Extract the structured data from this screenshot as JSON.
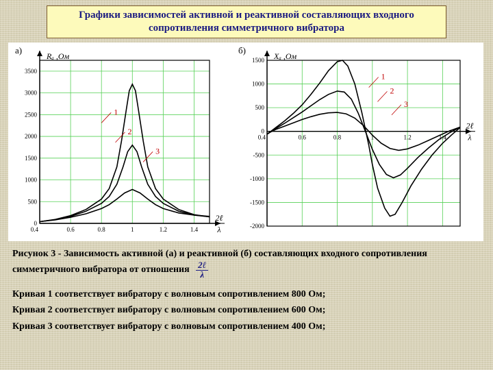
{
  "title": "Графики зависимостей активной и реактивной составляющих входного сопротивления симметричного вибратора",
  "caption_main": "Рисунок 3 - Зависимость активной (а) и реактивной (б) составляющих входного сопротивления симметричного вибратора от отношения",
  "ratio_num": "2ℓ",
  "ratio_den": "λ",
  "legend1": "Кривая 1 соответствует вибратору с волновым сопротивлением 800 Ом;",
  "legend2": "Кривая 2 соответствует вибратору с волновым сопротивлением 600 Ом;",
  "legend3": "Кривая 3 соответствует вибратору с волновым сопротивлением 400 Ом;",
  "panel_a": {
    "label": "а)",
    "y_axis_label": "Rₐ ,Ом",
    "x_axis_num": "2ℓ",
    "x_axis_den": "λ",
    "grid_color": "#55d055",
    "axis_color": "#000000",
    "background": "#ffffff",
    "line_color": "#000000",
    "label_color": "#c00000",
    "xlim": [
      0.4,
      1.5
    ],
    "ylim": [
      0,
      3750
    ],
    "xticks": [
      0.4,
      0.6,
      0.8,
      1.0,
      1.2,
      1.4
    ],
    "yticks": [
      0,
      500,
      1000,
      1500,
      2000,
      2500,
      3000,
      3500
    ],
    "series": {
      "1": {
        "label": "1",
        "label_xy": [
          0.88,
          2500
        ],
        "pts": [
          [
            0.4,
            40
          ],
          [
            0.5,
            90
          ],
          [
            0.6,
            180
          ],
          [
            0.7,
            320
          ],
          [
            0.8,
            560
          ],
          [
            0.85,
            800
          ],
          [
            0.9,
            1300
          ],
          [
            0.93,
            1900
          ],
          [
            0.96,
            2600
          ],
          [
            0.98,
            3050
          ],
          [
            1.0,
            3200
          ],
          [
            1.02,
            3050
          ],
          [
            1.04,
            2600
          ],
          [
            1.07,
            1900
          ],
          [
            1.1,
            1300
          ],
          [
            1.15,
            800
          ],
          [
            1.2,
            560
          ],
          [
            1.3,
            320
          ],
          [
            1.4,
            200
          ],
          [
            1.5,
            150
          ]
        ]
      },
      "2": {
        "label": "2",
        "label_xy": [
          0.97,
          2050
        ],
        "pts": [
          [
            0.4,
            40
          ],
          [
            0.5,
            85
          ],
          [
            0.6,
            160
          ],
          [
            0.7,
            280
          ],
          [
            0.8,
            460
          ],
          [
            0.85,
            620
          ],
          [
            0.9,
            900
          ],
          [
            0.94,
            1300
          ],
          [
            0.97,
            1650
          ],
          [
            1.0,
            1800
          ],
          [
            1.03,
            1650
          ],
          [
            1.06,
            1300
          ],
          [
            1.1,
            900
          ],
          [
            1.15,
            620
          ],
          [
            1.2,
            460
          ],
          [
            1.3,
            280
          ],
          [
            1.4,
            190
          ],
          [
            1.5,
            150
          ]
        ]
      },
      "3": {
        "label": "3",
        "label_xy": [
          1.15,
          1600
        ],
        "pts": [
          [
            0.4,
            40
          ],
          [
            0.5,
            80
          ],
          [
            0.6,
            140
          ],
          [
            0.7,
            220
          ],
          [
            0.8,
            340
          ],
          [
            0.85,
            430
          ],
          [
            0.9,
            560
          ],
          [
            0.95,
            700
          ],
          [
            1.0,
            780
          ],
          [
            1.05,
            700
          ],
          [
            1.1,
            560
          ],
          [
            1.15,
            430
          ],
          [
            1.2,
            340
          ],
          [
            1.3,
            240
          ],
          [
            1.4,
            190
          ],
          [
            1.5,
            160
          ]
        ]
      }
    }
  },
  "panel_b": {
    "label": "б)",
    "y_axis_label": "Xₐ ,Ом",
    "x_axis_num": "2ℓ",
    "x_axis_den": "λ",
    "grid_color": "#55d055",
    "axis_color": "#000000",
    "background": "#ffffff",
    "line_color": "#000000",
    "label_color": "#c00000",
    "xlim": [
      0.4,
      1.5
    ],
    "ylim": [
      -2000,
      1500
    ],
    "xticks": [
      0.4,
      0.6,
      0.8,
      1.0,
      1.2,
      1.4
    ],
    "yticks": [
      -2000,
      -1500,
      -1000,
      -500,
      0,
      500,
      1000,
      1500
    ],
    "series": {
      "1": {
        "label": "1",
        "label_xy": [
          1.05,
          1100
        ],
        "pts": [
          [
            0.4,
            -60
          ],
          [
            0.45,
            80
          ],
          [
            0.5,
            220
          ],
          [
            0.55,
            380
          ],
          [
            0.6,
            560
          ],
          [
            0.65,
            780
          ],
          [
            0.7,
            1020
          ],
          [
            0.75,
            1280
          ],
          [
            0.8,
            1470
          ],
          [
            0.83,
            1500
          ],
          [
            0.86,
            1380
          ],
          [
            0.9,
            1000
          ],
          [
            0.94,
            400
          ],
          [
            0.98,
            -300
          ],
          [
            1.0,
            -700
          ],
          [
            1.03,
            -1200
          ],
          [
            1.07,
            -1620
          ],
          [
            1.1,
            -1790
          ],
          [
            1.13,
            -1750
          ],
          [
            1.17,
            -1500
          ],
          [
            1.22,
            -1150
          ],
          [
            1.28,
            -800
          ],
          [
            1.34,
            -500
          ],
          [
            1.4,
            -250
          ],
          [
            1.45,
            -80
          ],
          [
            1.5,
            80
          ]
        ]
      },
      "2": {
        "label": "2",
        "label_xy": [
          1.1,
          800
        ],
        "pts": [
          [
            0.4,
            -60
          ],
          [
            0.45,
            60
          ],
          [
            0.5,
            170
          ],
          [
            0.55,
            290
          ],
          [
            0.6,
            410
          ],
          [
            0.65,
            540
          ],
          [
            0.7,
            670
          ],
          [
            0.75,
            780
          ],
          [
            0.8,
            850
          ],
          [
            0.84,
            830
          ],
          [
            0.88,
            680
          ],
          [
            0.92,
            380
          ],
          [
            0.96,
            0
          ],
          [
            1.0,
            -380
          ],
          [
            1.04,
            -700
          ],
          [
            1.08,
            -910
          ],
          [
            1.12,
            -980
          ],
          [
            1.16,
            -920
          ],
          [
            1.2,
            -780
          ],
          [
            1.26,
            -550
          ],
          [
            1.32,
            -350
          ],
          [
            1.38,
            -170
          ],
          [
            1.44,
            -30
          ],
          [
            1.5,
            90
          ]
        ]
      },
      "3": {
        "label": "3",
        "label_xy": [
          1.18,
          520
        ],
        "pts": [
          [
            0.4,
            -50
          ],
          [
            0.45,
            40
          ],
          [
            0.5,
            110
          ],
          [
            0.55,
            180
          ],
          [
            0.6,
            250
          ],
          [
            0.65,
            310
          ],
          [
            0.7,
            360
          ],
          [
            0.75,
            390
          ],
          [
            0.8,
            400
          ],
          [
            0.85,
            370
          ],
          [
            0.9,
            280
          ],
          [
            0.95,
            120
          ],
          [
            1.0,
            -80
          ],
          [
            1.05,
            -250
          ],
          [
            1.1,
            -360
          ],
          [
            1.15,
            -400
          ],
          [
            1.2,
            -370
          ],
          [
            1.26,
            -290
          ],
          [
            1.32,
            -190
          ],
          [
            1.38,
            -90
          ],
          [
            1.44,
            10
          ],
          [
            1.5,
            90
          ]
        ]
      }
    }
  }
}
